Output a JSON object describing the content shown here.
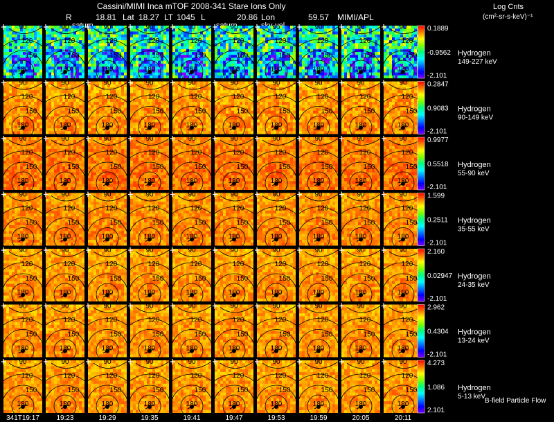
{
  "header": {
    "title": "Cassini/MIMI Inca mTOF  2008-341   Stare   Ions Only",
    "r_label": "R",
    "r_value": "18.81",
    "lat_label": "Lat",
    "lat_value": "18.27",
    "lt_label": "LT",
    "lt_value": "1045",
    "l_label": "L",
    "l_value": "20.86",
    "lon_label": "Lon",
    "lon_value": "59.57",
    "org": "MIMI/APL",
    "frame_labels": [
      "saturn",
      "saturn",
      "sky-vel"
    ],
    "units_title": "Log Cnts",
    "units_expr": "(cm²-sr-s-keV)⁻¹"
  },
  "footer": {
    "legend_note": "B-field Particle Flow"
  },
  "chart_data": {
    "type": "heatmap",
    "title": "Cassini/MIMI Inca mTOF  2008-341   Stare   Ions Only",
    "time_labels": [
      "341T19:17",
      "19:23",
      "19:29",
      "19:35",
      "19:41",
      "19:47",
      "19:53",
      "19:59",
      "20:05",
      "20:11"
    ],
    "contour_labels": [
      "90",
      "120",
      "150",
      "180"
    ],
    "rows": [
      {
        "species": "Hydrogen",
        "energy": "149-227 keV",
        "cmax": "0.1889",
        "cmid": "-0.9562",
        "cmin": "-2.101"
      },
      {
        "species": "Hydrogen",
        "energy": "90-149 keV",
        "cmax": "0.2847",
        "cmid": "0.9083",
        "cmin": "-2.101"
      },
      {
        "species": "Hydrogen",
        "energy": "55-90 keV",
        "cmax": "0.9977",
        "cmid": "0.5518",
        "cmin": "-2.101"
      },
      {
        "species": "Hydrogen",
        "energy": "35-55 keV",
        "cmax": "1.599",
        "cmid": "0.2511",
        "cmin": "-2.101"
      },
      {
        "species": "Hydrogen",
        "energy": "24-35 keV",
        "cmax": "2.160",
        "cmid": "0.02947",
        "cmin": "-2.101"
      },
      {
        "species": "Hydrogen",
        "energy": "13-24 keV",
        "cmax": "2.962",
        "cmid": "0.4304",
        "cmin": "-2.101"
      },
      {
        "species": "Hydrogen",
        "energy": "5-13 keV",
        "cmax": "4.273",
        "cmid": "1.086",
        "cmin": "2.101"
      }
    ],
    "colorbar": [
      "#8000ff",
      "#0000ff",
      "#0080ff",
      "#00ffff",
      "#00ff80",
      "#80ff00",
      "#ffff00",
      "#ff8000",
      "#ff0000"
    ],
    "grid": false
  }
}
